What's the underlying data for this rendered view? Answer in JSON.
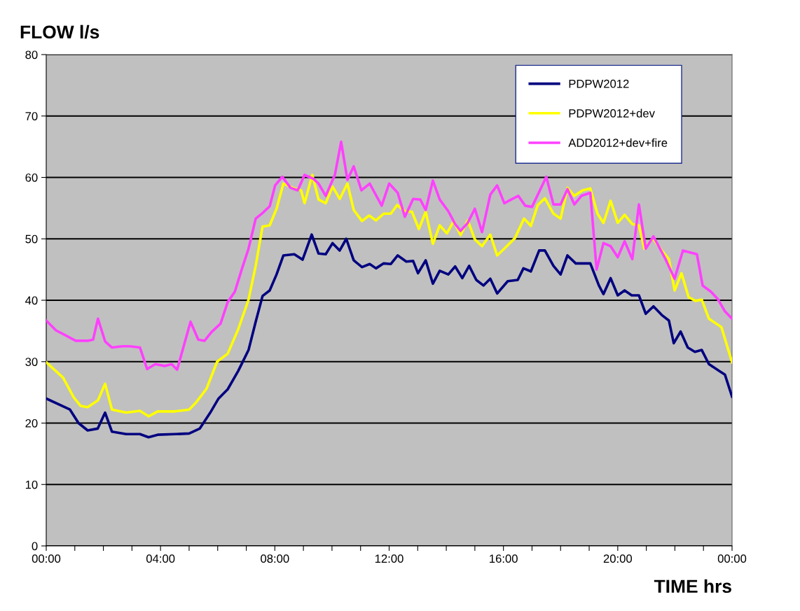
{
  "chart_data": {
    "type": "line",
    "ylabel": "FLOW l/s",
    "xlabel": "TIME hrs",
    "xlim": [
      0,
      24
    ],
    "ylim": [
      0,
      80
    ],
    "yticks": [
      0,
      10,
      20,
      30,
      40,
      50,
      60,
      70,
      80
    ],
    "xticks": [
      {
        "value": 0,
        "label": "00:00"
      },
      {
        "value": 1,
        "label": null
      },
      {
        "value": 2,
        "label": null
      },
      {
        "value": 3,
        "label": null
      },
      {
        "value": 4,
        "label": "04:00"
      },
      {
        "value": 5,
        "label": null
      },
      {
        "value": 6,
        "label": null
      },
      {
        "value": 7,
        "label": null
      },
      {
        "value": 8,
        "label": "08:00"
      },
      {
        "value": 9,
        "label": null
      },
      {
        "value": 10,
        "label": null
      },
      {
        "value": 11,
        "label": null
      },
      {
        "value": 12,
        "label": "12:00"
      },
      {
        "value": 13,
        "label": null
      },
      {
        "value": 14,
        "label": null
      },
      {
        "value": 15,
        "label": null
      },
      {
        "value": 16,
        "label": "16:00"
      },
      {
        "value": 17,
        "label": null
      },
      {
        "value": 18,
        "label": null
      },
      {
        "value": 19,
        "label": null
      },
      {
        "value": 20,
        "label": "20:00"
      },
      {
        "value": 21,
        "label": null
      },
      {
        "value": 22,
        "label": null
      },
      {
        "value": 23,
        "label": null
      },
      {
        "value": 24,
        "label": "00:00"
      }
    ],
    "grid": "y",
    "legend": "top right",
    "marker": "none",
    "line_style": "solid",
    "series": [
      {
        "name": "PDPW2012",
        "color": "#000080",
        "x": [
          0,
          0.83,
          1.13,
          1.45,
          1.8,
          2.06,
          2.3,
          2.8,
          3.28,
          3.58,
          3.9,
          4.5,
          5.0,
          5.37,
          5.74,
          6.03,
          6.35,
          6.72,
          7.08,
          7.33,
          7.57,
          7.82,
          8.06,
          8.3,
          8.68,
          8.97,
          9.29,
          9.53,
          9.78,
          10.02,
          10.27,
          10.5,
          10.76,
          11.05,
          11.32,
          11.54,
          11.81,
          12.06,
          12.3,
          12.6,
          12.84,
          13.01,
          13.28,
          13.53,
          13.77,
          14.07,
          14.31,
          14.56,
          14.8,
          15.05,
          15.3,
          15.54,
          15.78,
          16.15,
          16.5,
          16.7,
          16.96,
          17.25,
          17.45,
          17.75,
          18.0,
          18.24,
          18.53,
          19.04,
          19.34,
          19.5,
          19.75,
          20.0,
          20.24,
          20.49,
          20.74,
          20.98,
          21.25,
          21.54,
          21.79,
          21.96,
          22.2,
          22.45,
          22.7,
          22.94,
          23.19,
          23.55,
          23.75,
          24.0
        ],
        "values": [
          24,
          22.2,
          20,
          18.8,
          19.1,
          21.7,
          18.6,
          18.2,
          18.2,
          17.7,
          18.1,
          18.2,
          18.3,
          19.1,
          21.7,
          24,
          25.5,
          28.5,
          31.9,
          36.5,
          40.7,
          41.6,
          44.2,
          47.3,
          47.5,
          46.6,
          50.7,
          47.6,
          47.5,
          49.3,
          48.1,
          50,
          46.5,
          45.4,
          45.9,
          45.2,
          46,
          45.9,
          47.3,
          46.3,
          46.4,
          44.4,
          46.5,
          42.7,
          44.8,
          44.2,
          45.5,
          43.6,
          45.6,
          43.3,
          42.4,
          43.5,
          41.1,
          43.1,
          43.3,
          45.2,
          44.7,
          48.1,
          48.1,
          45.6,
          44.2,
          47.3,
          46,
          46,
          42.4,
          41,
          43.6,
          40.8,
          41.6,
          40.8,
          40.8,
          37.8,
          39,
          37.6,
          36.7,
          33,
          34.9,
          32.3,
          31.6,
          31.9,
          29.6,
          28.5,
          27.9,
          24.3
        ]
      },
      {
        "name": "PDPW2012+dev",
        "color": "#ffff00",
        "x": [
          0,
          0.59,
          0.96,
          1.2,
          1.45,
          1.81,
          2.06,
          2.3,
          2.8,
          3.28,
          3.58,
          3.9,
          4.5,
          5.0,
          5.25,
          5.61,
          5.98,
          6.35,
          6.72,
          7.08,
          7.33,
          7.57,
          7.82,
          8.06,
          8.3,
          8.63,
          8.92,
          9.04,
          9.31,
          9.53,
          9.78,
          10.02,
          10.27,
          10.54,
          10.76,
          11.05,
          11.3,
          11.54,
          11.81,
          12.06,
          12.28,
          12.55,
          12.8,
          13.04,
          13.28,
          13.53,
          13.77,
          14.02,
          14.26,
          14.5,
          14.75,
          15.0,
          15.25,
          15.54,
          15.78,
          16.03,
          16.4,
          16.72,
          16.96,
          17.2,
          17.45,
          17.75,
          18.0,
          18.24,
          18.48,
          18.77,
          19.04,
          19.29,
          19.5,
          19.75,
          20.0,
          20.24,
          20.51,
          20.74,
          20.93,
          21.23,
          21.54,
          21.79,
          21.99,
          22.23,
          22.48,
          22.72,
          22.94,
          23.19,
          23.63,
          24.0
        ],
        "values": [
          29.9,
          27.4,
          24.2,
          22.8,
          22.6,
          23.7,
          26.4,
          22.2,
          21.7,
          22,
          21.1,
          21.9,
          21.9,
          22.2,
          23.4,
          25.6,
          30,
          31.3,
          35.3,
          40.1,
          45.6,
          52,
          52.2,
          54.9,
          59,
          58.3,
          57.9,
          55.8,
          60.4,
          56.4,
          55.8,
          58.5,
          56.5,
          59,
          54.7,
          52.9,
          53.8,
          53,
          54.1,
          54.1,
          55.5,
          54.5,
          54.4,
          51.6,
          54.4,
          49.2,
          52.2,
          50.9,
          52.9,
          50.6,
          53,
          49.9,
          48.8,
          50.7,
          47.3,
          48.4,
          50.1,
          53.3,
          52.1,
          55.5,
          56.6,
          54.1,
          53.3,
          58.3,
          57,
          57.9,
          58.2,
          54.1,
          52.6,
          56.2,
          52.6,
          53.9,
          52.4,
          52.2,
          48.4,
          50.1,
          48.1,
          46.7,
          41.6,
          44.4,
          40.5,
          39.9,
          40.1,
          37,
          35.6,
          29.9
        ]
      },
      {
        "name": "ADD2012+dev+fire",
        "color": "#ff40ff",
        "x": [
          0,
          0.34,
          0.71,
          1.03,
          1.45,
          1.64,
          1.81,
          2.06,
          2.3,
          2.67,
          2.92,
          3.28,
          3.53,
          3.82,
          4.14,
          4.39,
          4.58,
          5.05,
          5.32,
          5.54,
          5.78,
          6.1,
          6.35,
          6.6,
          6.84,
          7.08,
          7.33,
          7.57,
          7.82,
          8.01,
          8.26,
          8.55,
          8.8,
          9.04,
          9.34,
          9.53,
          9.78,
          10.1,
          10.32,
          10.54,
          10.76,
          11.03,
          11.32,
          11.74,
          12.0,
          12.3,
          12.55,
          12.84,
          13.09,
          13.28,
          13.53,
          13.77,
          14.07,
          14.31,
          14.5,
          14.75,
          15.0,
          15.25,
          15.54,
          15.78,
          16.03,
          16.27,
          16.52,
          16.76,
          17.0,
          17.5,
          17.75,
          18.0,
          18.24,
          18.48,
          18.73,
          19.04,
          19.26,
          19.5,
          19.75,
          20.0,
          20.24,
          20.51,
          20.74,
          20.98,
          21.25,
          21.67,
          21.99,
          22.28,
          22.77,
          22.97,
          23.26,
          23.5,
          23.75,
          24.0
        ],
        "values": [
          36.7,
          35.1,
          34.2,
          33.4,
          33.4,
          33.6,
          37,
          33.3,
          32.3,
          32.5,
          32.5,
          32.3,
          28.8,
          29.6,
          29.3,
          29.6,
          28.7,
          36.5,
          33.6,
          33.4,
          34.8,
          36.2,
          39.7,
          41.4,
          45,
          48.4,
          53.3,
          54.2,
          55.3,
          58.7,
          60.1,
          58.3,
          57.9,
          60.4,
          59.8,
          59,
          57,
          60.4,
          65.8,
          59.6,
          61.8,
          57.9,
          59,
          55.4,
          59,
          57.5,
          53.6,
          56.5,
          56.4,
          54.7,
          59.5,
          56.4,
          54.5,
          52.4,
          51.3,
          52.6,
          54.9,
          51.1,
          57.2,
          58.7,
          55.8,
          56.4,
          57,
          55.4,
          55.2,
          60.1,
          55.6,
          55.6,
          58.1,
          55.6,
          57,
          57.5,
          45,
          49.3,
          48.8,
          47,
          49.6,
          46.7,
          55.6,
          48.4,
          50.4,
          46.7,
          43.5,
          48.1,
          47.5,
          42.4,
          41.4,
          40.2,
          38.2,
          37
        ]
      }
    ]
  }
}
